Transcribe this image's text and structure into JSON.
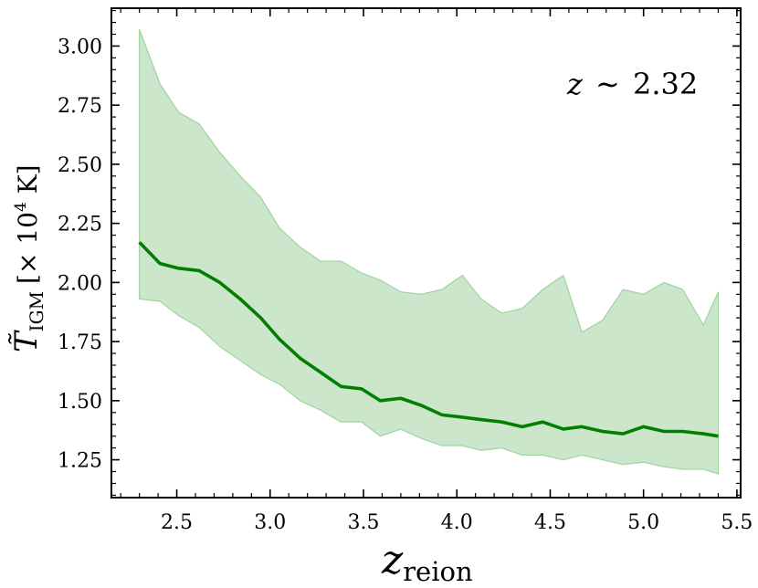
{
  "chart_data": {
    "type": "line",
    "annotation": {
      "prefix": "z",
      "mid": "∼",
      "value": "2.32"
    },
    "xlabel": {
      "main": "z",
      "sub": "reion"
    },
    "ylabel": {
      "main": "T̃",
      "sub": "IGM",
      "unit_pre": "[× 10",
      "unit_exp": "4",
      "unit_post": " K]"
    },
    "xlim": [
      2.15,
      5.52
    ],
    "ylim": [
      1.09,
      3.16
    ],
    "xticks": [
      2.5,
      3.0,
      3.5,
      4.0,
      4.5,
      5.0,
      5.5
    ],
    "xtick_labels": [
      "2.5",
      "3.0",
      "3.5",
      "4.0",
      "4.5",
      "5.0",
      "5.5"
    ],
    "yticks": [
      1.25,
      1.5,
      1.75,
      2.0,
      2.25,
      2.5,
      2.75,
      3.0
    ],
    "ytick_labels": [
      "1.25",
      "1.50",
      "1.75",
      "2.00",
      "2.25",
      "2.50",
      "2.75",
      "3.00"
    ],
    "line_color": "#007f00",
    "band_color": "#cbe6cb",
    "band_edge_color": "#9fd39f",
    "x": [
      2.3,
      2.41,
      2.51,
      2.62,
      2.73,
      2.84,
      2.95,
      3.05,
      3.16,
      3.27,
      3.38,
      3.49,
      3.59,
      3.7,
      3.81,
      3.92,
      4.03,
      4.13,
      4.24,
      4.35,
      4.46,
      4.57,
      4.67,
      4.78,
      4.89,
      5.0,
      5.11,
      5.21,
      5.32,
      5.4
    ],
    "series": [
      {
        "values": [
          2.17,
          2.08,
          2.06,
          2.05,
          2.0,
          1.93,
          1.85,
          1.76,
          1.68,
          1.62,
          1.56,
          1.55,
          1.5,
          1.51,
          1.48,
          1.44,
          1.43,
          1.42,
          1.41,
          1.39,
          1.41,
          1.38,
          1.39,
          1.37,
          1.36,
          1.39,
          1.37,
          1.37,
          1.36,
          1.35
        ]
      }
    ],
    "band_upper": [
      3.07,
      2.84,
      2.72,
      2.67,
      2.55,
      2.45,
      2.36,
      2.23,
      2.15,
      2.09,
      2.09,
      2.04,
      2.01,
      1.96,
      1.95,
      1.97,
      2.03,
      1.93,
      1.87,
      1.89,
      1.97,
      2.03,
      1.79,
      1.84,
      1.97,
      1.95,
      2.0,
      1.97,
      1.82,
      1.96
    ],
    "band_lower": [
      1.93,
      1.92,
      1.86,
      1.81,
      1.73,
      1.67,
      1.61,
      1.57,
      1.5,
      1.46,
      1.41,
      1.41,
      1.35,
      1.38,
      1.34,
      1.31,
      1.31,
      1.29,
      1.3,
      1.27,
      1.27,
      1.25,
      1.27,
      1.25,
      1.23,
      1.24,
      1.22,
      1.21,
      1.21,
      1.19
    ]
  }
}
